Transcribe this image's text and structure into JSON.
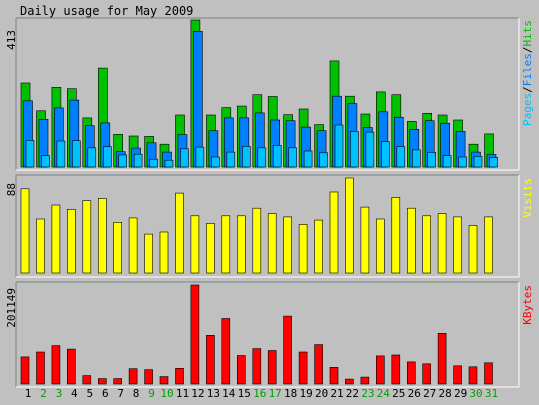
{
  "title": "Daily usage for May 2009",
  "colors": {
    "background": "#c0c0c0",
    "panel_fill": "#c0c0c0",
    "panel_dark": "#808080",
    "panel_light": "#ffffff",
    "hits": "#00c000",
    "files": "#0080ff",
    "pages": "#00c0ff",
    "visits": "#ffff00",
    "kbytes": "#ff0000",
    "text": "#000000",
    "weekend_label": "#00a000"
  },
  "legend": {
    "top": [
      {
        "text": "Pages",
        "color": "#00c0ff"
      },
      {
        "text": "/",
        "color": "#000000"
      },
      {
        "text": "Files",
        "color": "#0080ff"
      },
      {
        "text": "/",
        "color": "#000000"
      },
      {
        "text": "Hits",
        "color": "#00c000"
      }
    ],
    "middle": {
      "text": "Visits",
      "color": "#ffff00"
    },
    "bottom": {
      "text": "KBytes",
      "color": "#ff0000"
    }
  },
  "chart_data": [
    {
      "type": "bar",
      "categories": [
        "1",
        "2",
        "3",
        "4",
        "5",
        "6",
        "7",
        "8",
        "9",
        "10",
        "11",
        "12",
        "13",
        "14",
        "15",
        "16",
        "17",
        "18",
        "19",
        "20",
        "21",
        "22",
        "23",
        "24",
        "25",
        "26",
        "27",
        "28",
        "29",
        "30",
        "31"
      ],
      "ymax_label": "413",
      "ylim": [
        0,
        413
      ],
      "series": [
        {
          "name": "Hits",
          "values": [
            236,
            158,
            224,
            220,
            138,
            278,
            92,
            87,
            86,
            64,
            146,
            413,
            146,
            167,
            171,
            203,
            198,
            147,
            163,
            119,
            298,
            199,
            149,
            211,
            203,
            128,
            151,
            146,
            132,
            64,
            93
          ]
        },
        {
          "name": "Files",
          "values": [
            186,
            134,
            166,
            188,
            116,
            124,
            43,
            53,
            68,
            42,
            91,
            381,
            102,
            138,
            138,
            152,
            132,
            130,
            112,
            102,
            199,
            178,
            111,
            155,
            140,
            106,
            130,
            123,
            100,
            42,
            35
          ]
        },
        {
          "name": "Pages",
          "values": [
            75,
            32,
            73,
            74,
            54,
            57,
            34,
            36,
            22,
            19,
            51,
            56,
            28,
            42,
            58,
            54,
            61,
            54,
            45,
            40,
            118,
            100,
            98,
            71,
            57,
            48,
            41,
            32,
            28,
            30,
            27
          ]
        }
      ]
    },
    {
      "type": "bar",
      "categories": [
        "1",
        "2",
        "3",
        "4",
        "5",
        "6",
        "7",
        "8",
        "9",
        "10",
        "11",
        "12",
        "13",
        "14",
        "15",
        "16",
        "17",
        "18",
        "19",
        "20",
        "21",
        "22",
        "23",
        "24",
        "25",
        "26",
        "27",
        "28",
        "29",
        "30",
        "31"
      ],
      "ymax_label": "88",
      "ylim": [
        0,
        88
      ],
      "series": [
        {
          "name": "Visits",
          "values": [
            78,
            50,
            63,
            59,
            67,
            69,
            47,
            51,
            36,
            38,
            74,
            53,
            46,
            53,
            53,
            60,
            55,
            52,
            45,
            49,
            75,
            88,
            61,
            50,
            70,
            60,
            53,
            55,
            52,
            44,
            52
          ]
        }
      ]
    },
    {
      "type": "bar",
      "categories": [
        "1",
        "2",
        "3",
        "4",
        "5",
        "6",
        "7",
        "8",
        "9",
        "10",
        "11",
        "12",
        "13",
        "14",
        "15",
        "16",
        "17",
        "18",
        "19",
        "20",
        "21",
        "22",
        "23",
        "24",
        "25",
        "26",
        "27",
        "28",
        "29",
        "30",
        "31"
      ],
      "ymax_label": "201149",
      "ylim": [
        0,
        201149
      ],
      "series": [
        {
          "name": "KBytes",
          "values": [
            55000,
            65000,
            78000,
            71000,
            17000,
            11000,
            11000,
            31000,
            29000,
            15000,
            32000,
            201149,
            99000,
            133000,
            58000,
            72000,
            68000,
            138000,
            65000,
            80000,
            34000,
            10000,
            14000,
            57000,
            59000,
            45000,
            41000,
            103000,
            37000,
            35000,
            43000
          ]
        }
      ]
    }
  ],
  "weekend_days": [
    "2",
    "3",
    "9",
    "10",
    "16",
    "17",
    "23",
    "24",
    "30",
    "31"
  ]
}
